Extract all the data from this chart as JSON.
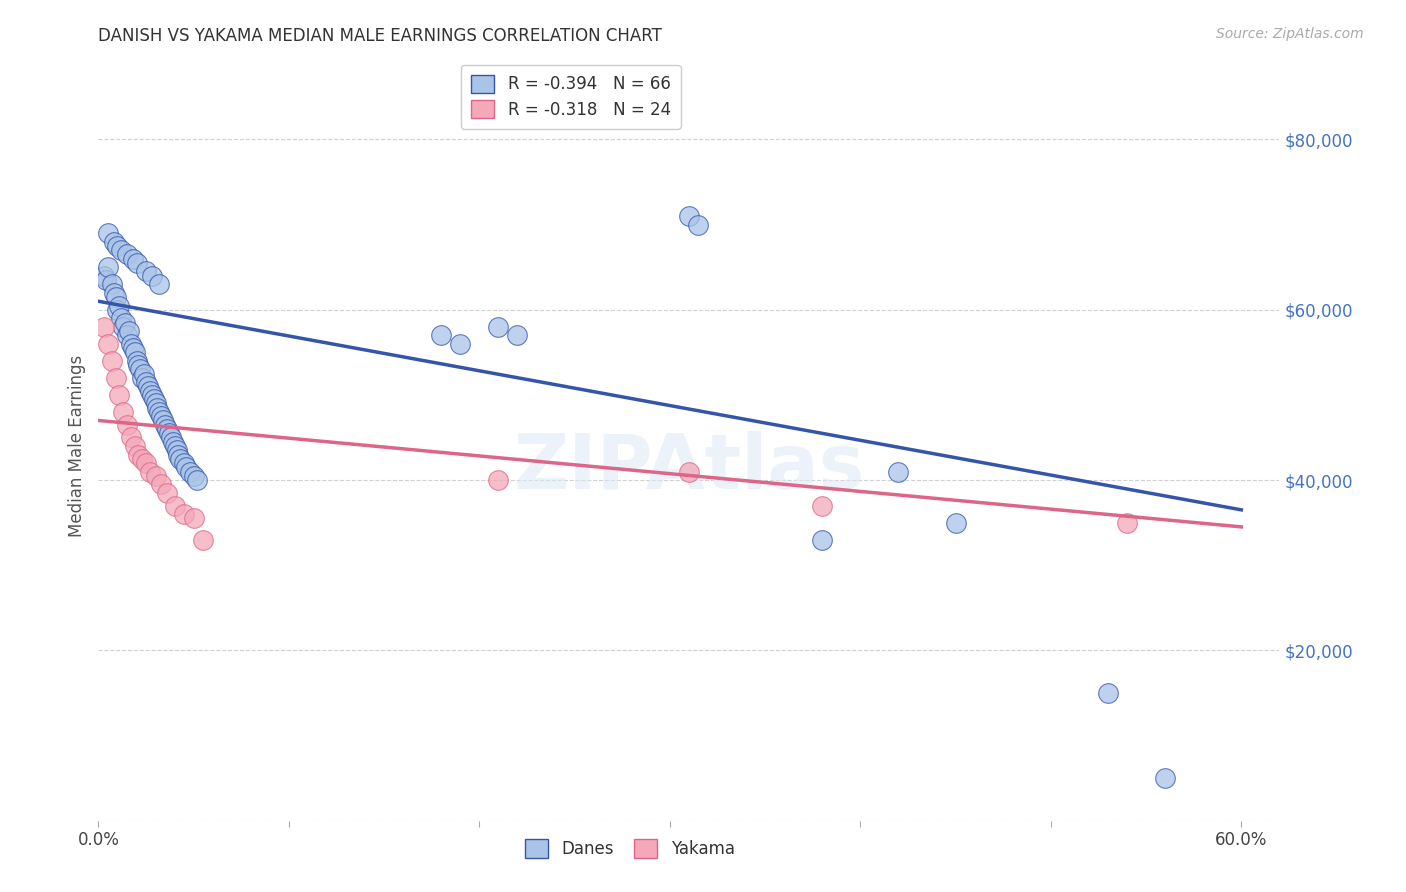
{
  "title": "DANISH VS YAKAMA MEDIAN MALE EARNINGS CORRELATION CHART",
  "source": "Source: ZipAtlas.com",
  "ylabel": "Median Male Earnings",
  "y_tick_color": "#4472c4",
  "xlim": [
    0.0,
    0.62
  ],
  "ylim": [
    0,
    88000
  ],
  "legend_entry1": "R = -0.394   N = 66",
  "legend_entry2": "R = -0.318   N = 24",
  "danes_color": "#aac4e8",
  "yakama_color": "#f4a8b8",
  "danes_line_color": "#3355aa",
  "yakama_line_color": "#dd6688",
  "danes_line": {
    "x0": 0.0,
    "y0": 61000,
    "x1": 0.6,
    "y1": 36500
  },
  "yakama_line": {
    "x0": 0.0,
    "y0": 47000,
    "x1": 0.6,
    "y1": 34500
  },
  "background_color": "#ffffff",
  "grid_color": "#cccccc",
  "danes_scatter_x": [
    0.003,
    0.004,
    0.005,
    0.007,
    0.008,
    0.009,
    0.01,
    0.011,
    0.012,
    0.013,
    0.014,
    0.015,
    0.016,
    0.017,
    0.018,
    0.019,
    0.02,
    0.021,
    0.022,
    0.023,
    0.024,
    0.025,
    0.026,
    0.027,
    0.028,
    0.029,
    0.03,
    0.031,
    0.032,
    0.033,
    0.034,
    0.035,
    0.036,
    0.037,
    0.038,
    0.039,
    0.04,
    0.041,
    0.042,
    0.043,
    0.045,
    0.046,
    0.048,
    0.05,
    0.052,
    0.005,
    0.008,
    0.01,
    0.012,
    0.015,
    0.018,
    0.02,
    0.025,
    0.028,
    0.032,
    0.18,
    0.19,
    0.21,
    0.22,
    0.31,
    0.315,
    0.38,
    0.42,
    0.45,
    0.53,
    0.56
  ],
  "danes_scatter_y": [
    64000,
    63500,
    65000,
    63000,
    62000,
    61500,
    60000,
    60500,
    59000,
    58000,
    58500,
    57000,
    57500,
    56000,
    55500,
    55000,
    54000,
    53500,
    53000,
    52000,
    52500,
    51500,
    51000,
    50500,
    50000,
    49500,
    49000,
    48500,
    48000,
    47500,
    47000,
    46500,
    46000,
    45500,
    45000,
    44500,
    44000,
    43500,
    43000,
    42500,
    42000,
    41500,
    41000,
    40500,
    40000,
    69000,
    68000,
    67500,
    67000,
    66500,
    66000,
    65500,
    64500,
    64000,
    63000,
    57000,
    56000,
    58000,
    57000,
    71000,
    70000,
    33000,
    41000,
    35000,
    15000,
    5000
  ],
  "yakama_scatter_x": [
    0.003,
    0.005,
    0.007,
    0.009,
    0.011,
    0.013,
    0.015,
    0.017,
    0.019,
    0.021,
    0.023,
    0.025,
    0.027,
    0.03,
    0.033,
    0.036,
    0.04,
    0.045,
    0.05,
    0.055,
    0.21,
    0.31,
    0.38,
    0.54
  ],
  "yakama_scatter_y": [
    58000,
    56000,
    54000,
    52000,
    50000,
    48000,
    46500,
    45000,
    44000,
    43000,
    42500,
    42000,
    41000,
    40500,
    39500,
    38500,
    37000,
    36000,
    35500,
    33000,
    40000,
    41000,
    37000,
    35000
  ]
}
